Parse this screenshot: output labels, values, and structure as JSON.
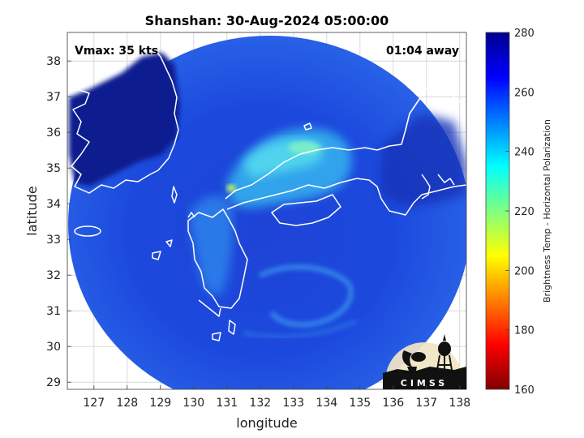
{
  "map": {
    "title": "Shanshan: 30-Aug-2024 05:00:00",
    "xlabel": "longitude",
    "ylabel": "latitude",
    "vmax_label": "Vmax: 35 kts",
    "time_label": "01:04 away",
    "lon_range": [
      126.2,
      138.2
    ],
    "lat_range": [
      28.8,
      38.8
    ],
    "lon_ticks": [
      127,
      128,
      129,
      130,
      131,
      132,
      133,
      134,
      135,
      136,
      137,
      138
    ],
    "lat_ticks": [
      29,
      30,
      31,
      32,
      33,
      34,
      35,
      36,
      37,
      38
    ],
    "grid": true
  },
  "colorbar": {
    "label": "Brightness Temp - Horizontal Polarization",
    "range": [
      160,
      280
    ],
    "ticks": [
      160,
      180,
      200,
      220,
      240,
      260,
      280
    ],
    "colormap": "jet"
  },
  "logo": {
    "text": "CIMSS"
  },
  "colors": {
    "ocean": "#1f4fd8",
    "cold_background": "#0a1f8f",
    "coastline": "#ffffff"
  }
}
